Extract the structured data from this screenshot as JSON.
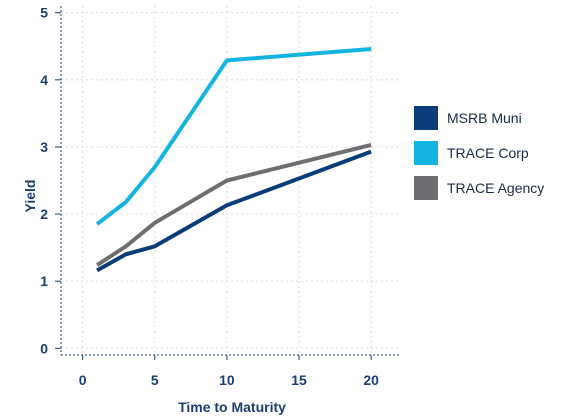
{
  "chart_data": {
    "type": "line",
    "xlabel": "Time to Maturity",
    "ylabel": "Yield",
    "xlim": [
      -1.5,
      22
    ],
    "ylim": [
      -0.1,
      5.1
    ],
    "xticks": [
      0,
      5,
      10,
      15,
      20
    ],
    "yticks": [
      0,
      1,
      2,
      3,
      4,
      5
    ],
    "grid": true,
    "legend_position": "right",
    "series": [
      {
        "name": "MSRB Muni",
        "color": "#0b3c7a",
        "x": [
          1,
          3,
          5,
          10,
          20
        ],
        "y": [
          1.16,
          1.4,
          1.52,
          2.13,
          2.93
        ]
      },
      {
        "name": "TRACE Corp",
        "color": "#14b4e0",
        "x": [
          1,
          3,
          5,
          10,
          20
        ],
        "y": [
          1.85,
          2.18,
          2.7,
          4.29,
          4.46
        ]
      },
      {
        "name": "TRACE Agency",
        "color": "#6e6e70",
        "x": [
          1,
          3,
          5,
          10,
          20
        ],
        "y": [
          1.24,
          1.52,
          1.87,
          2.5,
          3.03
        ]
      }
    ]
  }
}
